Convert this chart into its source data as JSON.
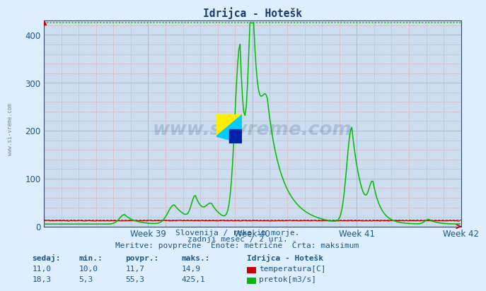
{
  "title": "Idrijca - Hotešk",
  "background_color": "#ddeeff",
  "plot_bg_color": "#ccddf0",
  "grid_color_major": "#aabbcc",
  "xlim": [
    0,
    336
  ],
  "ylim": [
    0,
    430
  ],
  "yticks": [
    0,
    100,
    200,
    300,
    400
  ],
  "week_ticks": [
    84,
    168,
    252,
    336
  ],
  "week_labels": [
    "Week 39",
    "Week 40",
    "Week 41",
    "Week 42"
  ],
  "max_line_value": 425.1,
  "temp_color": "#cc0000",
  "flow_color": "#00bb00",
  "subtitle1": "Slovenija / reke in morje.",
  "subtitle2": "zadnji mesec / 2 uri.",
  "subtitle3": "Meritve: povprečne  Enote: metrične  Črta: maksimum",
  "legend_title": "Idrijca - Hotešk",
  "label_sedaj": "sedaj:",
  "label_min": "min.:",
  "label_povpr": "povpr.:",
  "label_maks": "maks.:",
  "temp_sedaj": "11,0",
  "temp_min": "10,0",
  "temp_povpr": "11,7",
  "temp_maks": "14,9",
  "flow_sedaj": "18,3",
  "flow_min": "5,3",
  "flow_povpr": "55,3",
  "flow_maks": "425,1",
  "label_temp": "temperatura[C]",
  "label_flow": "pretok[m3/s]",
  "watermark": "www.si-vreme.com",
  "watermark_color": "#1a3a6e",
  "text_color": "#1a5588"
}
